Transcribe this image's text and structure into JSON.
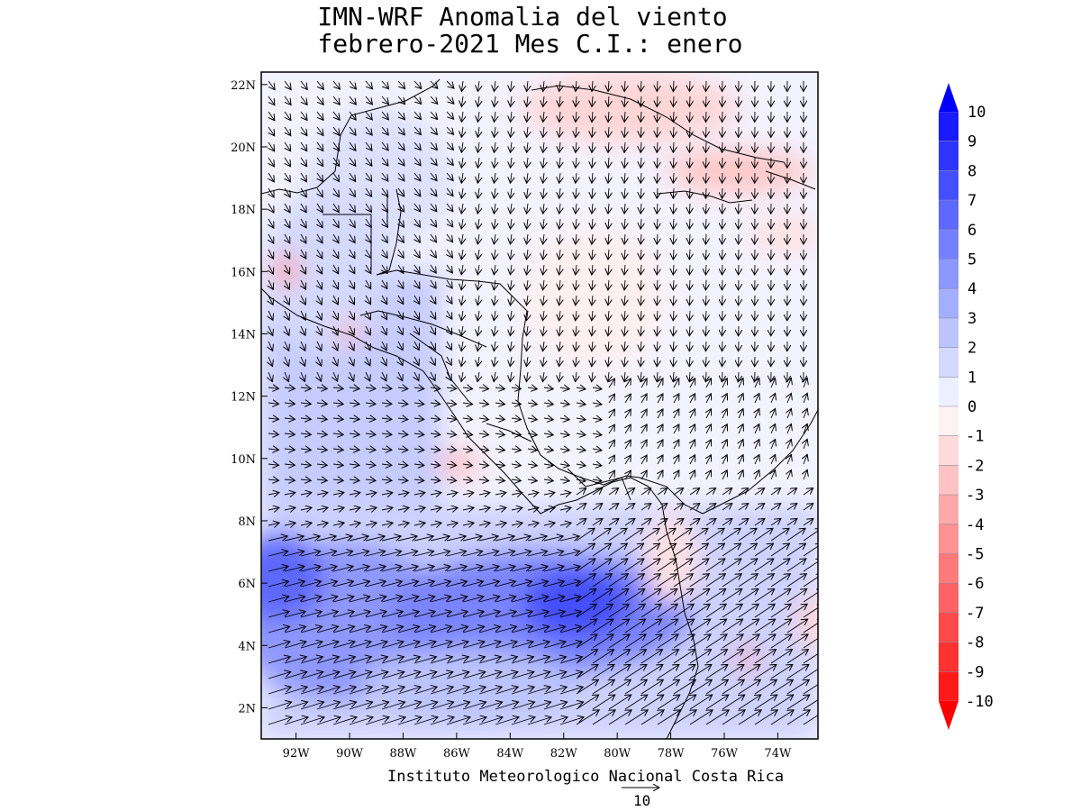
{
  "title": {
    "line1": "IMN-WRF Anomalia del viento",
    "line2": " febrero-2021 Mes C.I.: enero"
  },
  "map": {
    "lat_labels": [
      "22N",
      "20N",
      "18N",
      "16N",
      "14N",
      "12N",
      "10N",
      "8N",
      "6N",
      "4N",
      "2N"
    ],
    "lat_values": [
      22,
      20,
      18,
      16,
      14,
      12,
      10,
      8,
      6,
      4,
      2
    ],
    "lon_labels": [
      "92W",
      "90W",
      "88W",
      "86W",
      "84W",
      "82W",
      "80W",
      "78W",
      "76W",
      "74W"
    ],
    "lon_values": [
      -92,
      -90,
      -88,
      -86,
      -84,
      -82,
      -80,
      -78,
      -76,
      -74
    ],
    "lon_range": [
      -93.3,
      -72.5
    ],
    "lat_range": [
      1.0,
      22.4
    ]
  },
  "colorbar": {
    "labels": [
      "10",
      "9",
      "8",
      "7",
      "6",
      "5",
      "4",
      "3",
      "2",
      "1",
      "0",
      "-1",
      "-2",
      "-3",
      "-4",
      "-5",
      "-6",
      "-7",
      "-8",
      "-9",
      "-10"
    ],
    "colors": [
      "#1a1aff",
      "#2f35ff",
      "#4450ff",
      "#5d68ff",
      "#7580ff",
      "#8c98ff",
      "#a4aeff",
      "#bcc4ff",
      "#d4d9ff",
      "#ecefff",
      "#fff2f2",
      "#ffdada",
      "#ffc2c2",
      "#ffaaaa",
      "#ff9292",
      "#ff7a7a",
      "#ff6262",
      "#ff4a4a",
      "#ff3232",
      "#ff1a1a"
    ],
    "max_color": "#0000ff",
    "min_color": "#ff0000"
  },
  "footer": {
    "institution": "Instituto Meteorologico Nacional Costa Rica",
    "reference_vector": "10"
  }
}
